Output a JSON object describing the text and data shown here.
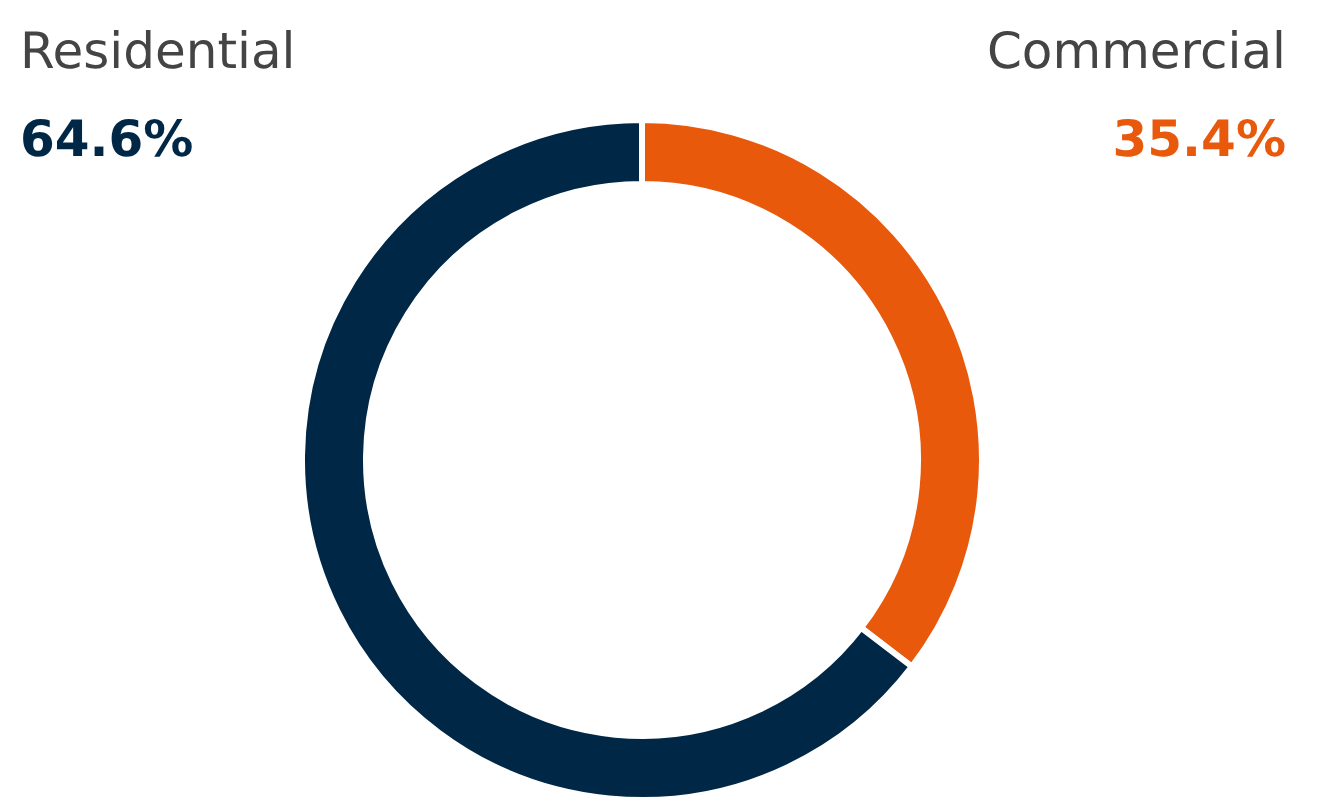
{
  "chart_data": {
    "type": "donut",
    "categories": [
      "Commercial",
      "Residential"
    ],
    "values": [
      35.4,
      64.6
    ],
    "colors": [
      "#e8590c",
      "#002846"
    ],
    "value_labels": [
      "35.4%",
      "64.6%"
    ]
  }
}
